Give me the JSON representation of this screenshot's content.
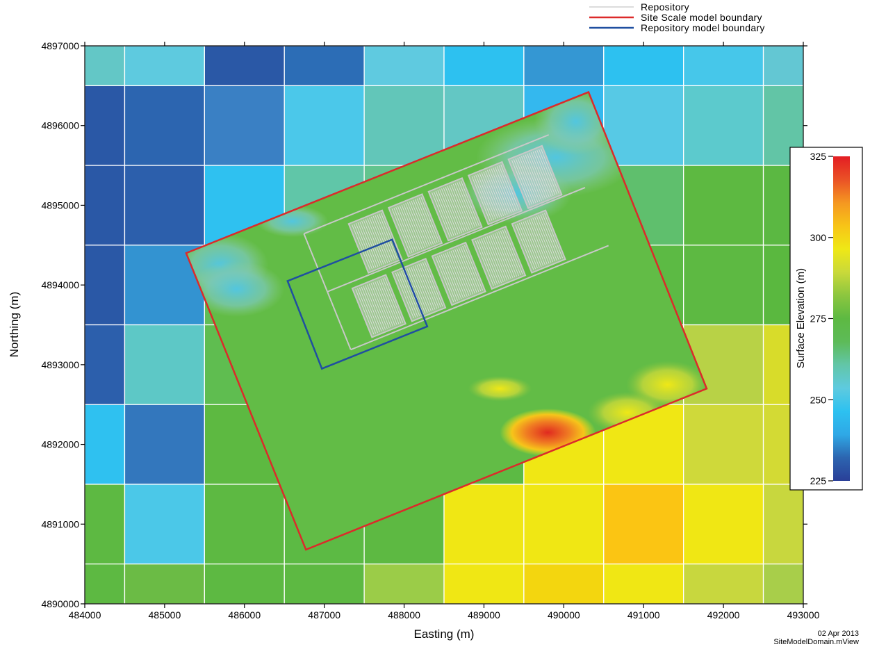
{
  "chart_data": {
    "type": "heatmap",
    "title": "",
    "xlabel": "Easting  (m)",
    "ylabel": "Northing  (m)",
    "xlim": [
      484000,
      493000
    ],
    "ylim": [
      4890000,
      4897000
    ],
    "x_ticks": [
      "484000",
      "485000",
      "486000",
      "487000",
      "488000",
      "489000",
      "490000",
      "491000",
      "492000",
      "493000"
    ],
    "y_ticks": [
      "4890000",
      "4891000",
      "4892000",
      "4893000",
      "4894000",
      "4895000",
      "4896000",
      "4897000"
    ],
    "grid_cell_x_edges": [
      484000,
      484500,
      485500,
      486500,
      487500,
      488500,
      489500,
      490500,
      491500,
      492500,
      493000
    ],
    "grid_cell_y_edges": [
      4890000,
      4890500,
      4891500,
      4892500,
      4893500,
      4894500,
      4895500,
      4896500,
      4897000
    ],
    "grid_cell_colors_top_to_bottom": [
      [
        "#63c7c6",
        "#5ecadf",
        "#2a58a6",
        "#2c6db6",
        "#5fcae0",
        "#2dc1f0",
        "#3497d3",
        "#2dc1f0",
        "#46c7ea",
        "#63c7d3"
      ],
      [
        "#2a58a6",
        "#2c65b0",
        "#3a80c4",
        "#4bc8ea",
        "#62c6b9",
        "#63c7c4",
        "#34b8ee",
        "#57c9e5",
        "#5ccacd",
        "#62c5a6"
      ],
      [
        "#2a58a6",
        "#2c5fac",
        "#2fc1f0",
        "#60c6a8",
        "#62c48e",
        "#60c17a",
        "#5fc067",
        "#5fbf6d",
        "#5db941",
        "#5bb842"
      ],
      [
        "#2a58a6",
        "#3393d1",
        "#60bd55",
        "#62be57",
        "#5fbd4f",
        "#5cba45",
        "#5db943",
        "#5cba44",
        "#5db942",
        "#5ab83f"
      ],
      [
        "#2c5fac",
        "#5dc8c6",
        "#5fbd50",
        "#60bd4e",
        "#5cbb46",
        "#5cb844",
        "#5cb944",
        "#aed04c",
        "#b8d246",
        "#d8dc2a"
      ],
      [
        "#2fc1f0",
        "#3377bd",
        "#5db941",
        "#5cb943",
        "#5db942",
        "#5cba44",
        "#f0e714",
        "#f0e714",
        "#cfd93a",
        "#d3da34"
      ],
      [
        "#5db942",
        "#4bc8e8",
        "#5db942",
        "#5cba44",
        "#5db942",
        "#f0e714",
        "#f0e714",
        "#fbc513",
        "#f0e714",
        "#c8d73e"
      ],
      [
        "#5db942",
        "#6bbb45",
        "#5db942",
        "#5db942",
        "#9bcc48",
        "#f0e714",
        "#f3d60f",
        "#f0e714",
        "#c8d73e",
        "#a8ce4a"
      ]
    ],
    "colorbar": {
      "label": "Surface Elevation  (m)",
      "min": 225,
      "max": 325,
      "ticks": [
        "325",
        "300",
        "275",
        "250",
        "225"
      ],
      "colors_low_to_high": [
        "#2a3f98",
        "#2c65b0",
        "#2fa8e6",
        "#2dc1f0",
        "#5ecadf",
        "#62c6a8",
        "#5dbb58",
        "#5db942",
        "#8cc63f",
        "#c9d93a",
        "#efe816",
        "#f7c417",
        "#f59721",
        "#ea5126",
        "#e31d23"
      ]
    },
    "site_scale_boundary_corners_m": [
      [
        485270,
        4894400
      ],
      [
        490310,
        4896420
      ],
      [
        491790,
        4892700
      ],
      [
        486770,
        4890680
      ]
    ],
    "repository_model_boundary_corners_m": [
      [
        486540,
        4894050
      ],
      [
        487850,
        4894570
      ],
      [
        488290,
        4893480
      ],
      [
        486970,
        4892950
      ]
    ],
    "legend": {
      "placement": "top-right",
      "entries": [
        {
          "label": "Repository",
          "color": "#c8c8c8"
        },
        {
          "label": "Site  Scale  model  boundary",
          "color": "#dc2a2a"
        },
        {
          "label": "Repository  model  boundary",
          "color": "#1f4fa0"
        }
      ]
    }
  },
  "footer": {
    "date": "02  Apr  2013",
    "file": "SiteModelDomain.mView"
  }
}
